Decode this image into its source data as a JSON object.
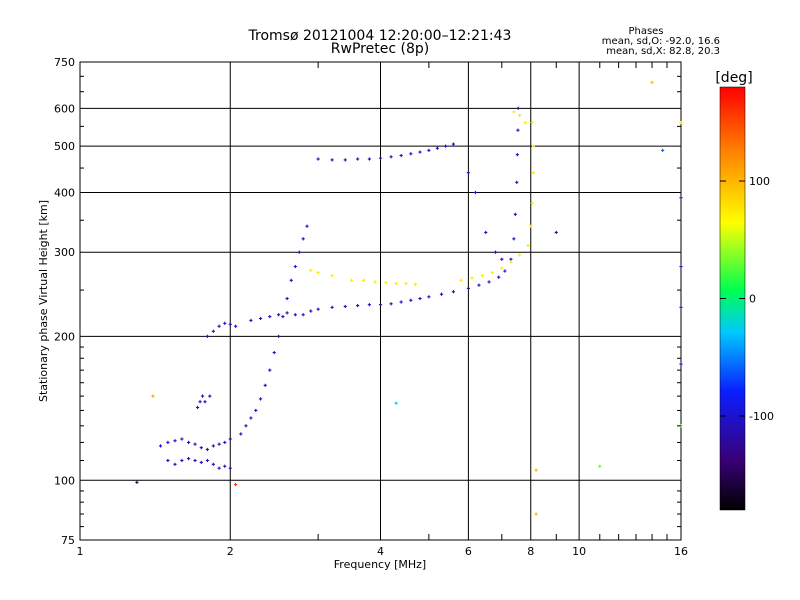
{
  "chart_data": {
    "type": "scatter",
    "title": "Tromsø 20121004 12:20:00–12:21:43",
    "subtitle": "RwPretec (8p)",
    "xlabel": "Frequency [MHz]",
    "ylabel": "Stationary phase Virtual Height [km]",
    "xscale": "log",
    "yscale": "log",
    "xlim": [
      1,
      16
    ],
    "ylim": [
      75,
      750
    ],
    "xticks": [
      1,
      2,
      4,
      6,
      8,
      10,
      16
    ],
    "xtick_labels": [
      "1",
      "2",
      "4",
      "6",
      "8",
      "10",
      "16"
    ],
    "yticks": [
      75,
      100,
      200,
      300,
      400,
      500,
      600,
      750
    ],
    "ytick_labels": [
      "75",
      "100",
      "200",
      "300",
      "400",
      "500",
      "600",
      "750"
    ],
    "grid": true,
    "stats": {
      "heading": "Phases",
      "line1": "mean, sd,O: -92.0, 16.6",
      "line2": "mean, sd,X:  82.8, 20.3"
    },
    "colorbar": {
      "label": "[deg]",
      "range": [
        -180,
        180
      ],
      "ticks": [
        100,
        0,
        -100
      ],
      "tick_labels": [
        "100",
        "0",
        "-100"
      ]
    },
    "series": [
      {
        "trace": "O-mode",
        "color_value": -105,
        "points": [
          [
            1.5,
            110
          ],
          [
            1.55,
            108
          ],
          [
            1.6,
            110
          ],
          [
            1.65,
            111
          ],
          [
            1.7,
            110
          ],
          [
            1.75,
            109
          ],
          [
            1.8,
            110
          ],
          [
            1.85,
            108
          ],
          [
            1.9,
            106
          ],
          [
            1.95,
            107
          ],
          [
            2.0,
            106
          ],
          [
            1.45,
            118
          ],
          [
            1.5,
            120
          ],
          [
            1.55,
            121
          ],
          [
            1.6,
            122
          ],
          [
            1.65,
            120
          ],
          [
            1.7,
            119
          ],
          [
            1.75,
            117
          ],
          [
            1.8,
            116
          ],
          [
            1.85,
            118
          ],
          [
            1.9,
            119
          ],
          [
            1.95,
            120
          ],
          [
            2.0,
            122
          ],
          [
            2.1,
            125
          ],
          [
            2.15,
            130
          ],
          [
            2.2,
            135
          ],
          [
            2.25,
            140
          ],
          [
            2.3,
            148
          ],
          [
            2.35,
            158
          ],
          [
            2.4,
            170
          ],
          [
            2.45,
            185
          ],
          [
            2.5,
            200
          ],
          [
            2.55,
            220
          ],
          [
            2.6,
            240
          ],
          [
            2.65,
            262
          ],
          [
            2.7,
            280
          ],
          [
            2.75,
            300
          ],
          [
            2.8,
            320
          ],
          [
            2.85,
            340
          ],
          [
            1.72,
            142
          ],
          [
            1.74,
            146
          ],
          [
            1.76,
            150
          ],
          [
            1.78,
            146
          ],
          [
            1.82,
            150
          ],
          [
            1.8,
            200
          ],
          [
            1.85,
            205
          ],
          [
            1.9,
            210
          ],
          [
            1.95,
            213
          ],
          [
            2.0,
            212
          ],
          [
            2.05,
            210
          ],
          [
            2.2,
            216
          ],
          [
            2.3,
            218
          ],
          [
            2.4,
            220
          ],
          [
            2.5,
            222
          ],
          [
            2.6,
            224
          ],
          [
            2.7,
            222
          ],
          [
            2.8,
            222
          ],
          [
            2.9,
            226
          ],
          [
            3.0,
            228
          ],
          [
            3.2,
            230
          ],
          [
            3.4,
            231
          ],
          [
            3.6,
            232
          ],
          [
            3.8,
            233
          ],
          [
            4.0,
            233
          ],
          [
            4.2,
            234
          ],
          [
            4.4,
            236
          ],
          [
            4.6,
            238
          ],
          [
            4.8,
            240
          ],
          [
            5.0,
            242
          ],
          [
            5.3,
            245
          ],
          [
            5.6,
            248
          ],
          [
            6.0,
            252
          ],
          [
            6.3,
            256
          ],
          [
            6.6,
            260
          ],
          [
            6.9,
            266
          ],
          [
            7.1,
            274
          ],
          [
            7.3,
            290
          ],
          [
            7.4,
            320
          ],
          [
            7.45,
            360
          ],
          [
            7.5,
            420
          ],
          [
            7.52,
            480
          ],
          [
            7.54,
            540
          ],
          [
            7.55,
            600
          ],
          [
            3.0,
            470
          ],
          [
            3.2,
            468
          ],
          [
            3.4,
            468
          ],
          [
            3.6,
            470
          ],
          [
            3.8,
            470
          ],
          [
            4.0,
            472
          ],
          [
            4.2,
            475
          ],
          [
            4.4,
            478
          ],
          [
            4.6,
            482
          ],
          [
            4.8,
            486
          ],
          [
            5.0,
            490
          ],
          [
            5.2,
            495
          ],
          [
            5.4,
            500
          ],
          [
            5.6,
            505
          ],
          [
            6.0,
            440
          ],
          [
            6.2,
            400
          ],
          [
            6.5,
            330
          ],
          [
            6.8,
            300
          ],
          [
            7.0,
            290
          ]
        ]
      },
      {
        "trace": "X-mode",
        "color_value": 75,
        "points": [
          [
            3.5,
            262
          ],
          [
            3.7,
            262
          ],
          [
            3.9,
            260
          ],
          [
            4.1,
            259
          ],
          [
            4.3,
            258
          ],
          [
            4.5,
            258
          ],
          [
            4.7,
            257
          ],
          [
            5.8,
            262
          ],
          [
            6.1,
            265
          ],
          [
            6.4,
            268
          ],
          [
            6.7,
            272
          ],
          [
            7.0,
            278
          ],
          [
            7.3,
            286
          ],
          [
            7.6,
            296
          ],
          [
            7.9,
            310
          ],
          [
            8.0,
            340
          ],
          [
            8.05,
            380
          ],
          [
            8.1,
            440
          ],
          [
            8.1,
            500
          ],
          [
            8.05,
            560
          ],
          [
            7.4,
            590
          ],
          [
            7.6,
            580
          ],
          [
            7.8,
            560
          ],
          [
            2.9,
            275
          ],
          [
            3.0,
            272
          ],
          [
            3.2,
            268
          ]
        ]
      }
    ],
    "isolated_points": [
      {
        "x": 1.4,
        "y": 150,
        "color_value": 110
      },
      {
        "x": 2.05,
        "y": 98,
        "color_value": 160
      },
      {
        "x": 1.3,
        "y": 99,
        "color_value": -150
      },
      {
        "x": 8.2,
        "y": 105,
        "color_value": 100
      },
      {
        "x": 8.2,
        "y": 85,
        "color_value": 100
      },
      {
        "x": 11.0,
        "y": 107,
        "color_value": 30
      },
      {
        "x": 14.0,
        "y": 680,
        "color_value": 100
      },
      {
        "x": 14.7,
        "y": 490,
        "color_value": -60
      },
      {
        "x": 16.0,
        "y": 560,
        "color_value": 80
      },
      {
        "x": 16.0,
        "y": 280,
        "color_value": -100
      },
      {
        "x": 16.0,
        "y": 230,
        "color_value": -100
      },
      {
        "x": 16.0,
        "y": 130,
        "color_value": 30
      },
      {
        "x": 16.0,
        "y": 390,
        "color_value": -100
      },
      {
        "x": 16.0,
        "y": 175,
        "color_value": -100
      },
      {
        "x": 9.0,
        "y": 330,
        "color_value": -110
      },
      {
        "x": 4.3,
        "y": 145,
        "color_value": -20
      }
    ]
  }
}
